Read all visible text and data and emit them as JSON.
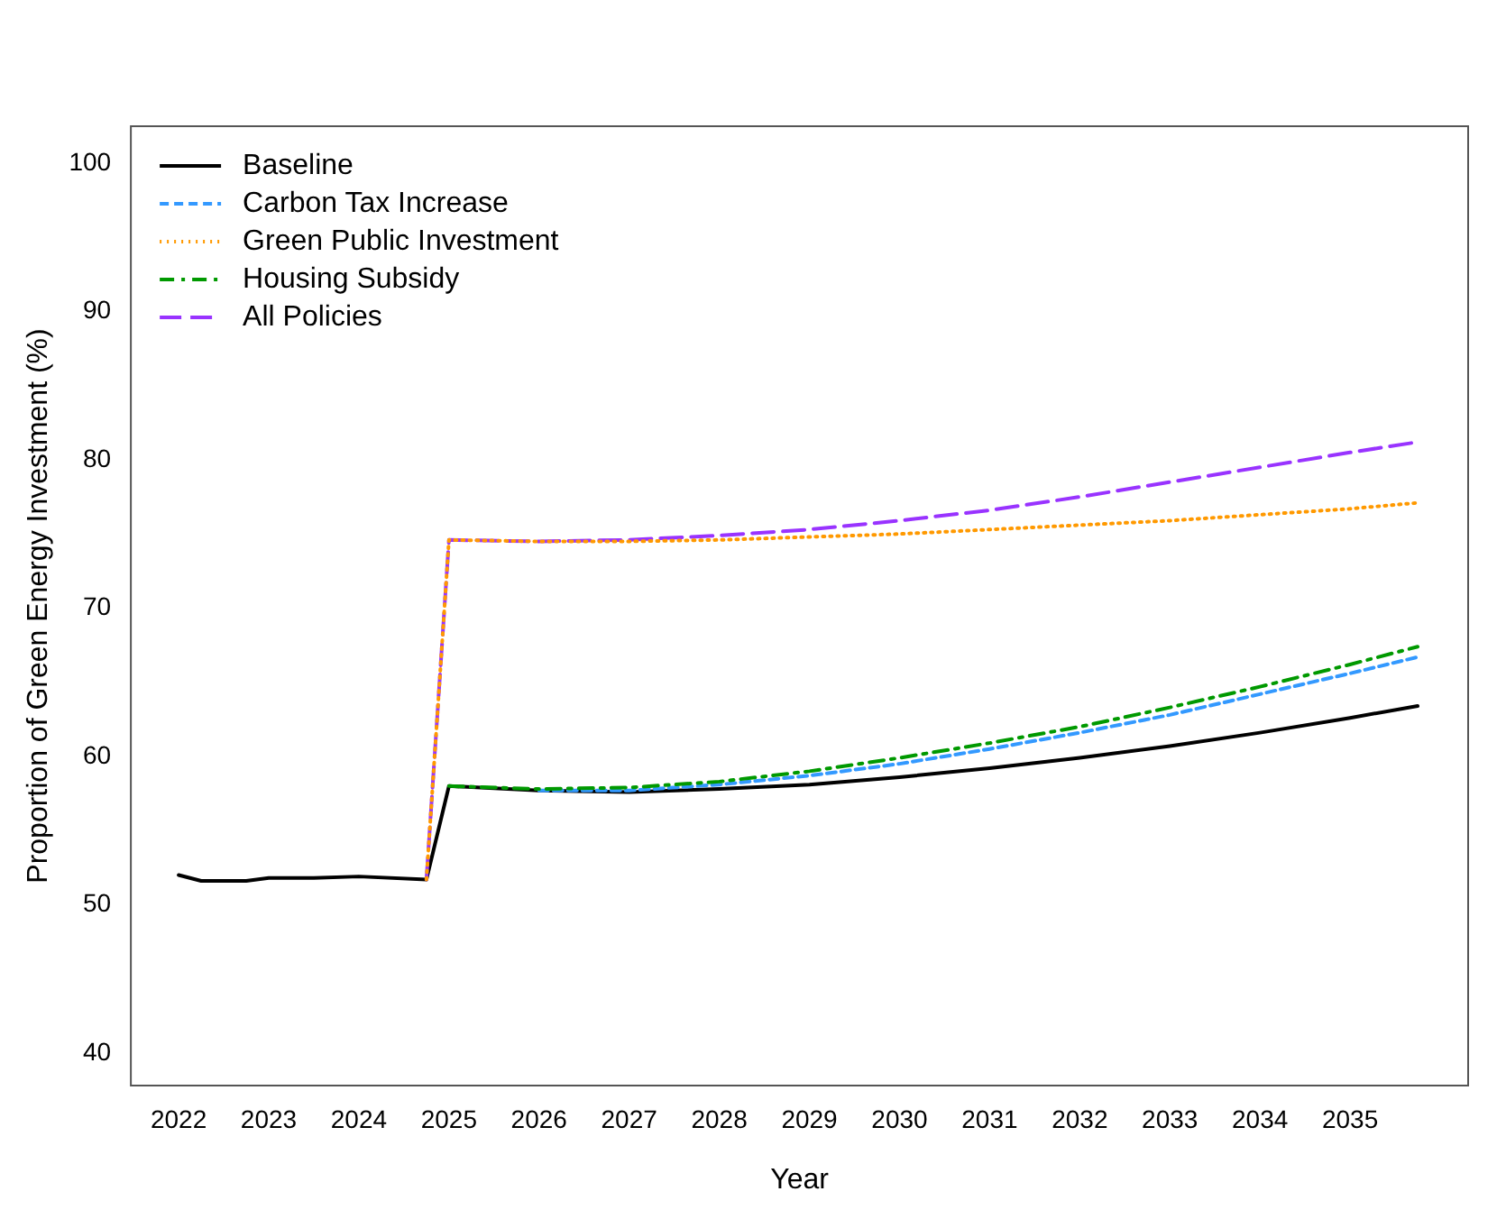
{
  "chart_data": {
    "type": "line",
    "xlabel": "Year",
    "ylabel": "Proportion of Green Energy Investment (%)",
    "x": [
      2022,
      2022.25,
      2022.75,
      2023,
      2023.5,
      2024,
      2024.75,
      2025,
      2026,
      2027,
      2028,
      2029,
      2030,
      2031,
      2032,
      2033,
      2034,
      2035,
      2035.75
    ],
    "series": [
      {
        "name": "Baseline",
        "color": "#000000",
        "line_style": "solid",
        "values": [
          52.0,
          51.6,
          51.6,
          51.8,
          51.8,
          51.9,
          51.7,
          58.0,
          57.7,
          57.6,
          57.8,
          58.1,
          58.6,
          59.2,
          59.9,
          60.7,
          61.6,
          62.6,
          63.4
        ]
      },
      {
        "name": "Carbon Tax Increase",
        "color": "#3399ff",
        "line_style": "dashed",
        "values": [
          null,
          null,
          null,
          null,
          null,
          null,
          null,
          null,
          57.7,
          57.7,
          58.1,
          58.7,
          59.5,
          60.5,
          61.6,
          62.8,
          64.2,
          65.6,
          66.7
        ]
      },
      {
        "name": "Green Public Investment",
        "color": "#ff9900",
        "line_style": "dotted",
        "values": [
          null,
          null,
          null,
          null,
          null,
          null,
          51.7,
          74.6,
          74.5,
          74.5,
          74.6,
          74.8,
          75.0,
          75.3,
          75.6,
          75.9,
          76.3,
          76.7,
          77.1
        ]
      },
      {
        "name": "Housing Subsidy",
        "color": "#009900",
        "line_style": "dashdot",
        "values": [
          null,
          null,
          null,
          null,
          null,
          null,
          null,
          58.0,
          57.8,
          57.9,
          58.3,
          59.0,
          59.9,
          60.9,
          62.0,
          63.3,
          64.7,
          66.2,
          67.4
        ]
      },
      {
        "name": "All Policies",
        "color": "#9933ff",
        "line_style": "longdash",
        "values": [
          null,
          null,
          null,
          null,
          null,
          null,
          51.7,
          74.6,
          74.5,
          74.6,
          74.9,
          75.3,
          75.9,
          76.6,
          77.5,
          78.5,
          79.5,
          80.5,
          81.2
        ]
      }
    ],
    "xlim": [
      2021.47,
      2036.31
    ],
    "xticks": [
      2022,
      2023,
      2024,
      2025,
      2026,
      2027,
      2028,
      2029,
      2030,
      2031,
      2032,
      2033,
      2034,
      2035
    ],
    "ylim": [
      37.8,
      102.5
    ],
    "yticks": [
      40,
      50,
      60,
      70,
      80,
      90,
      100
    ],
    "grid": false,
    "legend": "top left",
    "marker": "none"
  }
}
